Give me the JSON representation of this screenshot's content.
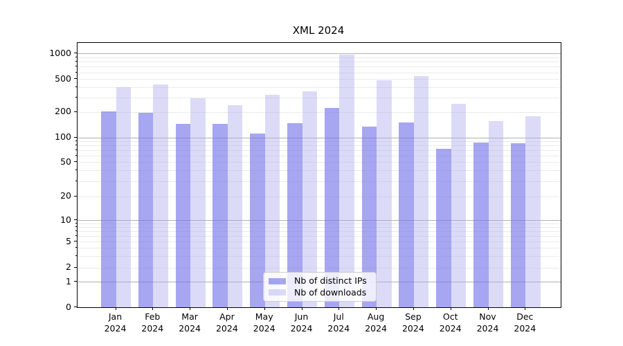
{
  "chart_data": {
    "type": "bar",
    "title": "XML 2024",
    "categories": [
      "Jan",
      "Feb",
      "Mar",
      "Apr",
      "May",
      "Jun",
      "Jul",
      "Aug",
      "Sep",
      "Oct",
      "Nov",
      "Dec"
    ],
    "category_year": "2024",
    "series": [
      {
        "name": "Nb of distinct IPs",
        "color": "#7070e8",
        "alpha": 0.62,
        "values": [
          205,
          195,
          145,
          145,
          112,
          147,
          225,
          135,
          150,
          73,
          87,
          85
        ]
      },
      {
        "name": "Nb of downloads",
        "color": "#aaaaee",
        "alpha": 0.42,
        "values": [
          400,
          430,
          295,
          240,
          325,
          355,
          970,
          480,
          545,
          250,
          157,
          180
        ]
      }
    ],
    "y_ticks": [
      0,
      1,
      2,
      5,
      10,
      20,
      50,
      100,
      200,
      500,
      1000
    ],
    "y_scale": "symlog",
    "xlabel": "",
    "ylabel": "",
    "grid": true,
    "legend_position": "lower center",
    "colors": {
      "major_grid": "#b0b0b0",
      "minor_grid": "#ebebeb",
      "spine": "#000000",
      "background": "#ffffff"
    }
  }
}
